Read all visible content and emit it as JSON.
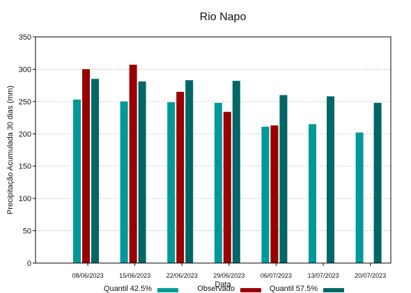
{
  "chart_data": {
    "type": "bar",
    "title": "Rio Napo",
    "xlabel": "Data",
    "ylabel": "Precipitação Acumulada 30 dias (mm)",
    "ylim": [
      0,
      350
    ],
    "yticks": [
      0,
      50,
      100,
      150,
      200,
      250,
      300,
      350
    ],
    "grid": true,
    "legend": "bottom",
    "categories": [
      "08/06/2023",
      "15/06/2023",
      "22/06/2023",
      "29/06/2023",
      "06/07/2023",
      "13/07/2023",
      "20/07/2023"
    ],
    "series": [
      {
        "name": "Quantil 42.5%",
        "color": "#009999",
        "values": [
          253,
          250,
          249,
          248,
          211,
          215,
          202
        ]
      },
      {
        "name": "Observado",
        "color": "#990000",
        "values": [
          300,
          307,
          265,
          234,
          213,
          null,
          null
        ]
      },
      {
        "name": "Quantil 57.5%",
        "color": "#006666",
        "values": [
          285,
          281,
          283,
          282,
          260,
          258,
          248
        ]
      }
    ]
  }
}
